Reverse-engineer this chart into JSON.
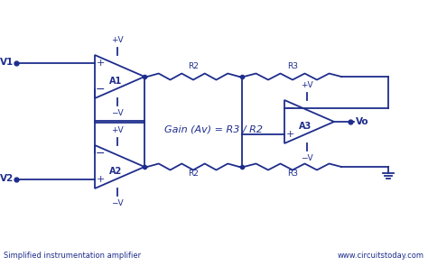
{
  "bg_color": "#ffffff",
  "line_color": "#1e2d8c",
  "text_color": "#1e2d8c",
  "title_bottom_left": "Simplified instrumentation amplifier",
  "title_bottom_right": "www.circuitstoday.com",
  "gain_text": "Gain (Av) = R3 / R2",
  "fig_width": 4.74,
  "fig_height": 2.95,
  "dpi": 100
}
